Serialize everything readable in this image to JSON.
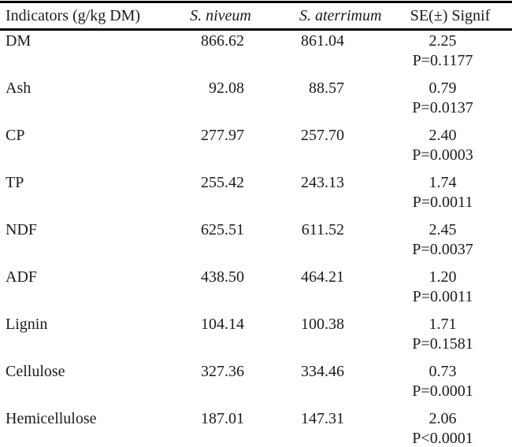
{
  "colors": {
    "text": "#1b1b1b",
    "rule": "#000000",
    "background": "#ffffff"
  },
  "table": {
    "header": {
      "indicators": "Indicators (g/kg DM)",
      "species1": "S. niveum",
      "species2": "S. aterrimum",
      "se_signif": "SE(±) Signif"
    },
    "rows": [
      {
        "indicator": "DM",
        "niveum": "866.62",
        "aterrimum": "861.04",
        "se": "2.25",
        "p": "P=0.1177"
      },
      {
        "indicator": "Ash",
        "niveum": "92.08",
        "aterrimum": "88.57",
        "se": "0.79",
        "p": "P=0.0137"
      },
      {
        "indicator": "CP",
        "niveum": "277.97",
        "aterrimum": "257.70",
        "se": "2.40",
        "p": "P=0.0003"
      },
      {
        "indicator": "TP",
        "niveum": "255.42",
        "aterrimum": "243.13",
        "se": "1.74",
        "p": "P=0.0011"
      },
      {
        "indicator": "NDF",
        "niveum": "625.51",
        "aterrimum": "611.52",
        "se": "2.45",
        "p": "P=0.0037"
      },
      {
        "indicator": "ADF",
        "niveum": "438.50",
        "aterrimum": "464.21",
        "se": "1.20",
        "p": "P=0.0011"
      },
      {
        "indicator": "Lignin",
        "niveum": "104.14",
        "aterrimum": "100.38",
        "se": "1.71",
        "p": "P=0.1581"
      },
      {
        "indicator": "Cellulose",
        "niveum": "327.36",
        "aterrimum": "334.46",
        "se": "0.73",
        "p": "P=0.0001"
      },
      {
        "indicator": "Hemicellulose",
        "niveum": "187.01",
        "aterrimum": "147.31",
        "se": "2.06",
        "p": "P<0.0001"
      }
    ]
  }
}
